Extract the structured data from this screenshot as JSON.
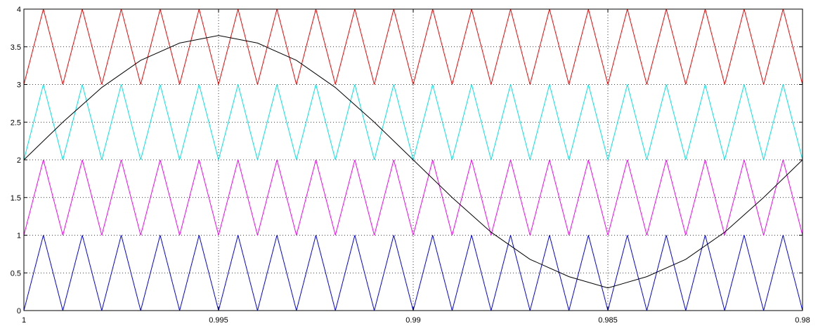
{
  "chart_data": {
    "type": "line",
    "title": "",
    "xlabel": "",
    "ylabel": "",
    "xlim": [
      1,
      0.98
    ],
    "ylim": [
      0,
      4
    ],
    "x_reversed": true,
    "grid": true,
    "x_ticks": [
      1,
      0.995,
      0.99,
      0.985,
      0.98
    ],
    "x_tick_labels": [
      "1",
      "0.995",
      "0.99",
      "0.985",
      "0.98"
    ],
    "y_ticks": [
      0,
      0.5,
      1,
      1.5,
      2,
      2.5,
      3,
      3.5,
      4
    ],
    "y_tick_labels": [
      "0",
      "0.5",
      "1",
      "1.5",
      "2",
      "2.5",
      "3",
      "3.5",
      "4"
    ],
    "carrier_period": 0.001,
    "series": [
      {
        "kind": "triangle",
        "color": "#ff0000",
        "min": 3,
        "max": 4,
        "x": [
          1,
          0.9995,
          0.999,
          0.9985,
          0.998,
          0.9975,
          0.997,
          0.9965,
          0.996,
          0.9955,
          0.995,
          0.9945,
          0.994,
          0.9935,
          0.993,
          0.9925,
          0.992,
          0.9915,
          0.991,
          0.9905,
          0.99,
          0.9895,
          0.989,
          0.9885,
          0.988,
          0.9875,
          0.987,
          0.9865,
          0.986,
          0.9855,
          0.985,
          0.9845,
          0.984,
          0.9835,
          0.983,
          0.9825,
          0.982,
          0.9815,
          0.981,
          0.9805,
          0.98
        ],
        "y": [
          3,
          4,
          3,
          4,
          3,
          4,
          3,
          4,
          3,
          4,
          3,
          4,
          3,
          4,
          3,
          4,
          3,
          4,
          3,
          4,
          3,
          4,
          3,
          4,
          3,
          4,
          3,
          4,
          3,
          4,
          3,
          4,
          3,
          4,
          3,
          4,
          3,
          4,
          3,
          4,
          3
        ]
      },
      {
        "kind": "triangle",
        "color": "#00e5e5",
        "min": 2,
        "max": 3,
        "x": [
          1,
          0.9995,
          0.999,
          0.9985,
          0.998,
          0.9975,
          0.997,
          0.9965,
          0.996,
          0.9955,
          0.995,
          0.9945,
          0.994,
          0.9935,
          0.993,
          0.9925,
          0.992,
          0.9915,
          0.991,
          0.9905,
          0.99,
          0.9895,
          0.989,
          0.9885,
          0.988,
          0.9875,
          0.987,
          0.9865,
          0.986,
          0.9855,
          0.985,
          0.9845,
          0.984,
          0.9835,
          0.983,
          0.9825,
          0.982,
          0.9815,
          0.981,
          0.9805,
          0.98
        ],
        "y": [
          2,
          3,
          2,
          3,
          2,
          3,
          2,
          3,
          2,
          3,
          2,
          3,
          2,
          3,
          2,
          3,
          2,
          3,
          2,
          3,
          2,
          3,
          2,
          3,
          2,
          3,
          2,
          3,
          2,
          3,
          2,
          3,
          2,
          3,
          2,
          3,
          2,
          3,
          2,
          3,
          2
        ]
      },
      {
        "kind": "triangle",
        "color": "#ff00ff",
        "min": 1,
        "max": 2,
        "x": [
          1,
          0.9995,
          0.999,
          0.9985,
          0.998,
          0.9975,
          0.997,
          0.9965,
          0.996,
          0.9955,
          0.995,
          0.9945,
          0.994,
          0.9935,
          0.993,
          0.9925,
          0.992,
          0.9915,
          0.991,
          0.9905,
          0.99,
          0.9895,
          0.989,
          0.9885,
          0.988,
          0.9875,
          0.987,
          0.9865,
          0.986,
          0.9855,
          0.985,
          0.9845,
          0.984,
          0.9835,
          0.983,
          0.9825,
          0.982,
          0.9815,
          0.981,
          0.9805,
          0.98
        ],
        "y": [
          1,
          2,
          1,
          2,
          1,
          2,
          1,
          2,
          1,
          2,
          1,
          2,
          1,
          2,
          1,
          2,
          1,
          2,
          1,
          2,
          1,
          2,
          1,
          2,
          1,
          2,
          1,
          2,
          1,
          2,
          1,
          2,
          1,
          2,
          1,
          2,
          1,
          2,
          1,
          2,
          1
        ]
      },
      {
        "kind": "triangle",
        "color": "#0000ff",
        "min": 0,
        "max": 1,
        "x": [
          1,
          0.9995,
          0.999,
          0.9985,
          0.998,
          0.9975,
          0.997,
          0.9965,
          0.996,
          0.9955,
          0.995,
          0.9945,
          0.994,
          0.9935,
          0.993,
          0.9925,
          0.992,
          0.9915,
          0.991,
          0.9905,
          0.99,
          0.9895,
          0.989,
          0.9885,
          0.988,
          0.9875,
          0.987,
          0.9865,
          0.986,
          0.9855,
          0.985,
          0.9845,
          0.984,
          0.9835,
          0.983,
          0.9825,
          0.982,
          0.9815,
          0.981,
          0.9805,
          0.98
        ],
        "y": [
          0,
          1,
          0,
          1,
          0,
          1,
          0,
          1,
          0,
          1,
          0,
          1,
          0,
          1,
          0,
          1,
          0,
          1,
          0,
          1,
          0,
          1,
          0,
          1,
          0,
          1,
          0,
          1,
          0,
          1,
          0,
          1,
          0,
          1,
          0,
          1,
          0,
          1,
          0,
          1,
          0
        ]
      },
      {
        "kind": "sine",
        "color": "#000000",
        "x": [
          1,
          0.999,
          0.998,
          0.997,
          0.996,
          0.995,
          0.994,
          0.993,
          0.992,
          0.991,
          0.99,
          0.989,
          0.988,
          0.987,
          0.986,
          0.985,
          0.984,
          0.983,
          0.982,
          0.981,
          0.98
        ],
        "y": [
          2.0,
          2.5,
          2.96,
          3.32,
          3.55,
          3.65,
          3.55,
          3.32,
          2.96,
          2.5,
          2.0,
          1.5,
          1.04,
          0.68,
          0.45,
          0.3,
          0.45,
          0.68,
          1.04,
          1.5,
          2.0
        ]
      }
    ]
  }
}
